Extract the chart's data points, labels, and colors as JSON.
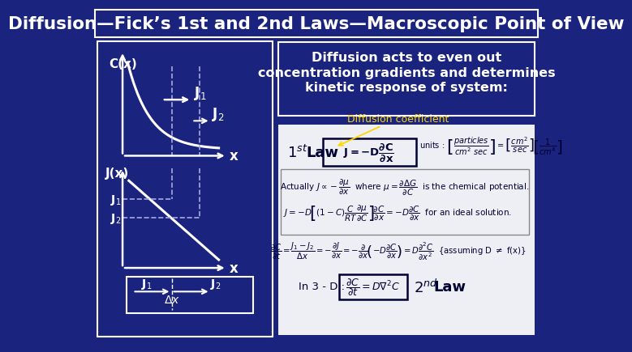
{
  "bg_color": "#1a237e",
  "title": "Diffusion—Fick’s 1st and 2nd Laws—Macroscopic Point of View",
  "title_color": "#ffffff",
  "title_fontsize": 16,
  "text_box1_line1": "Diffusion acts to even out",
  "text_box1_line2": "concentration gradients and determines",
  "text_box1_line3": "kinetic response of system:",
  "text_box1_color": "#ffffff",
  "diffusion_coeff_label": "Diffusion coefficient",
  "diffusion_coeff_color": "#ffd700",
  "right_panel_bg": "#eeeef5",
  "label_color": "#ffffff",
  "dashed_color": "#aaaadd",
  "dark_text": "#000033"
}
